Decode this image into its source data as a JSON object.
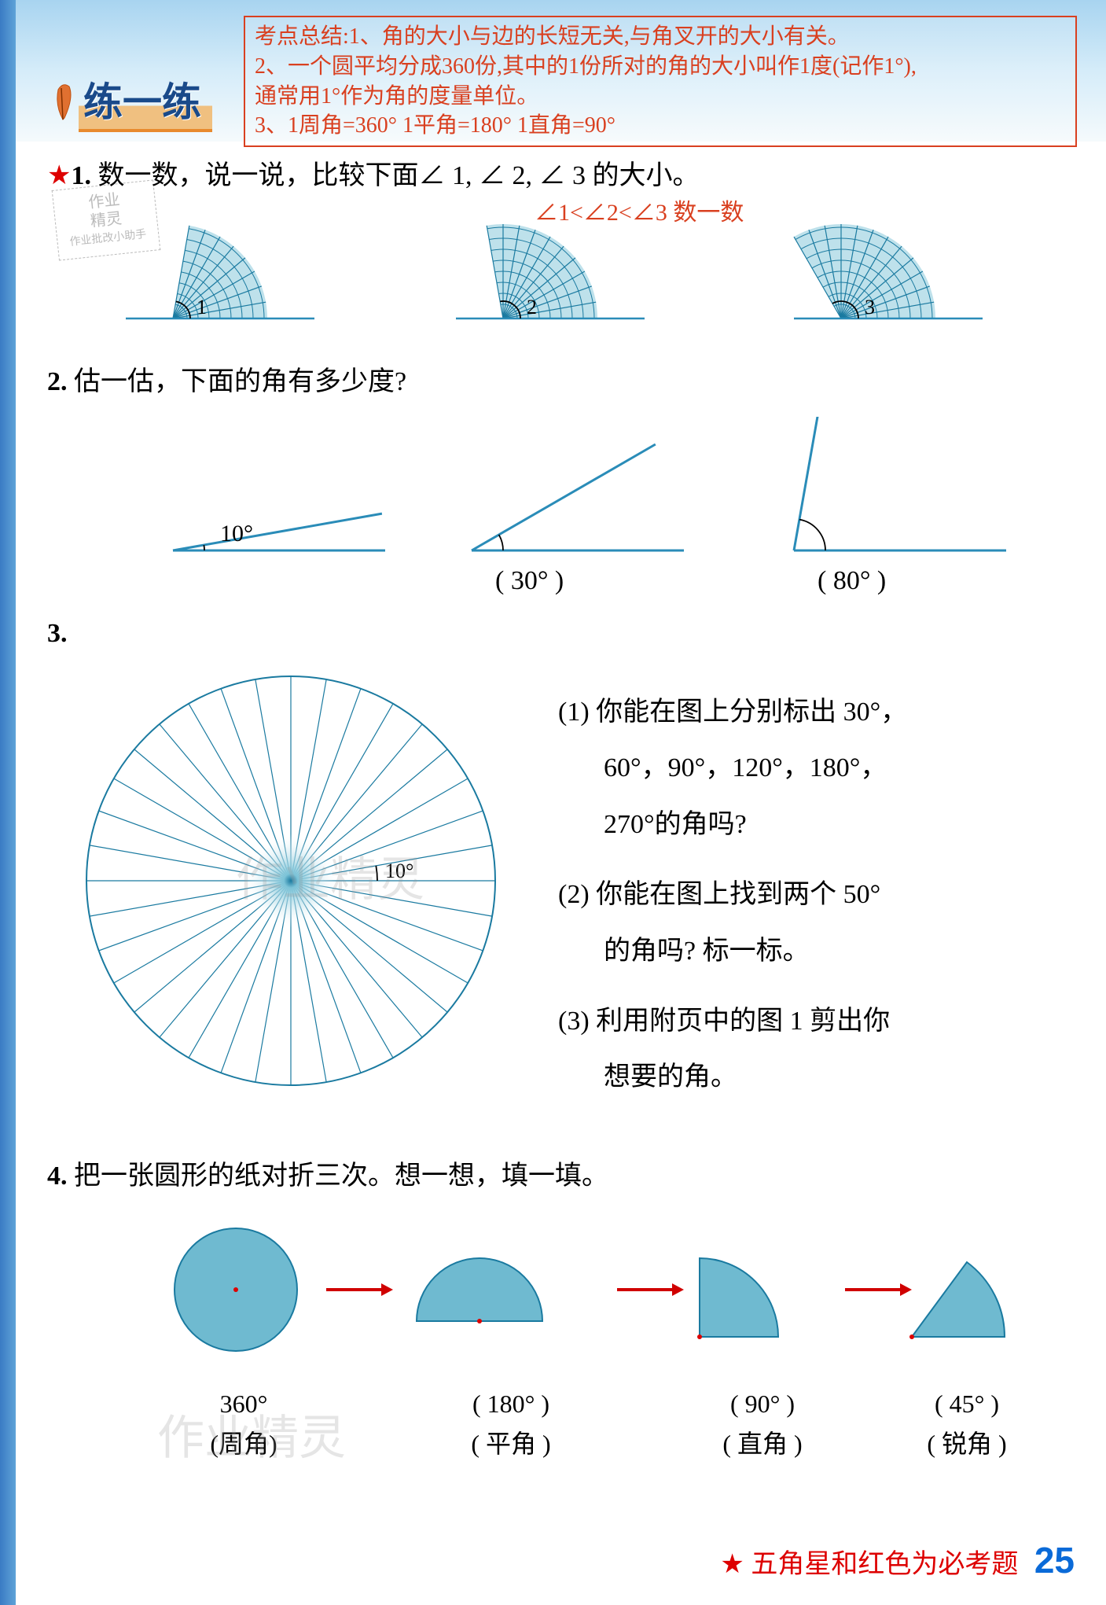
{
  "colors": {
    "fan_fill": "#7dc4d8",
    "fan_stroke": "#1a7aa0",
    "line_stroke": "#2a8cb8",
    "red": "#d94020",
    "arrow": "#d00000",
    "circle_fill": "#6fbad0",
    "page_strip": "#3a7bc4",
    "page_num": "#0a6ad8"
  },
  "summary": {
    "line1": "考点总结:1、角的大小与边的长短无关,与角叉开的大小有关。",
    "line2": "2、一个圆平均分成360份,其中的1份所对的角的大小叫作1度(记作1°),",
    "line3": "通常用1°作为角的度量单位。",
    "line4": "3、1周角=360°   1平角=180°   1直角=90°"
  },
  "title": "练一练",
  "stamp": {
    "l1": "作业",
    "l2": "精灵",
    "l3": "作业批改小助手"
  },
  "q1": {
    "star": "★",
    "num": "1.",
    "text": "数一数，说一说，比较下面∠ 1, ∠ 2, ∠ 3 的大小。",
    "answer": "∠1<∠2<∠3   数一数",
    "fans": [
      {
        "label": "1",
        "rays": 9,
        "span_deg": 80
      },
      {
        "label": "2",
        "rays": 11,
        "span_deg": 100
      },
      {
        "label": "3",
        "rays": 13,
        "span_deg": 120
      }
    ]
  },
  "q2": {
    "num": "2.",
    "text": "估一估，下面的角有多少度?",
    "angles": [
      {
        "deg": 10,
        "label": "10°",
        "show_paren": false
      },
      {
        "deg": 30,
        "label": "(  30° )",
        "show_paren": true
      },
      {
        "deg": 80,
        "label": "(  80° )",
        "show_paren": true
      }
    ]
  },
  "q3": {
    "num": "3.",
    "circle": {
      "rays": 36,
      "step_deg": 10,
      "marked": "10°"
    },
    "items": [
      {
        "n": "(1)",
        "t1": "你能在图上分别标出 30°，",
        "t2": "60°，90°，120°，180°，",
        "t3": "270°的角吗?"
      },
      {
        "n": "(2)",
        "t1": "你能在图上找到两个 50°",
        "t2": "的角吗? 标一标。"
      },
      {
        "n": "(3)",
        "t1": "利用附页中的图 1 剪出你",
        "t2": "想要的角。"
      }
    ]
  },
  "q4": {
    "num": "4.",
    "text": "把一张圆形的纸对折三次。想一想，填一填。",
    "arrow": "→",
    "steps": [
      {
        "deg_label": "360°",
        "name_label": "(周角)",
        "type": "full"
      },
      {
        "deg_label": "(  180° )",
        "name_label": "(  平角 )",
        "type": "half"
      },
      {
        "deg_label": "(  90° )",
        "name_label": "(  直角 )",
        "type": "quarter"
      },
      {
        "deg_label": "(  45° )",
        "name_label": "(  锐角 )",
        "type": "eighth"
      }
    ]
  },
  "footer": {
    "star": "★",
    "text": "五角星和红色为必考题",
    "page": "25"
  },
  "watermarks": {
    "w1": "作业精灵",
    "w2": "作业精灵"
  }
}
